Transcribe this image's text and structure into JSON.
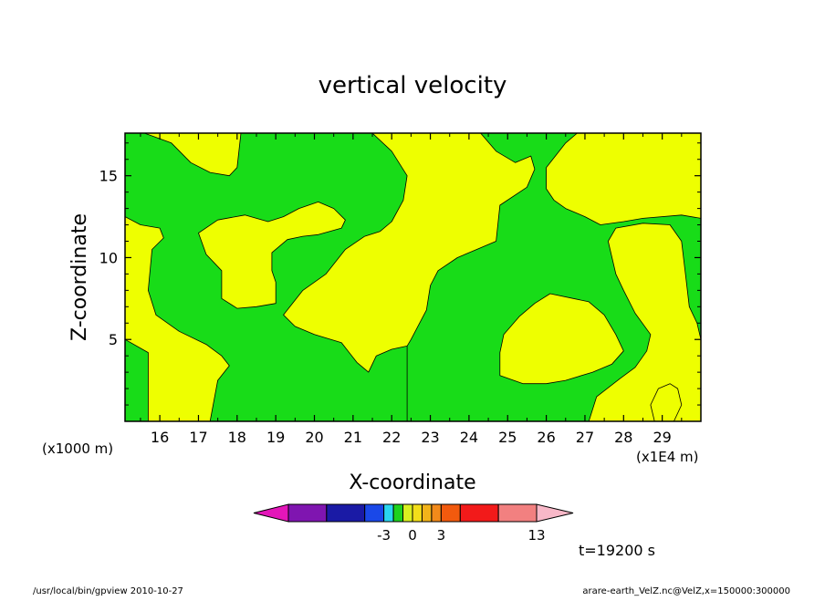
{
  "chart_data": {
    "type": "heatmap",
    "title": "vertical velocity",
    "xlabel": "X-coordinate",
    "ylabel": "Z-coordinate",
    "x_unit": "(x1E4 m)",
    "y_unit": "(x1000 m)",
    "xlim": [
      15.1,
      30.0
    ],
    "ylim": [
      0.0,
      17.6
    ],
    "x_ticks": [
      16,
      17,
      18,
      19,
      20,
      21,
      22,
      23,
      24,
      25,
      26,
      27,
      28,
      29
    ],
    "y_ticks": [
      5,
      10,
      15
    ],
    "time_label": "t=19200 s",
    "colorbar": {
      "levels": [
        -13,
        -9,
        -5,
        -3,
        -2,
        -1,
        0,
        1,
        2,
        3,
        5,
        9,
        13
      ],
      "colors": [
        "#e316b9",
        "#7f15b0",
        "#1a1aa5",
        "#1a48e8",
        "#2ad6f0",
        "#1ed21e",
        "#d8f020",
        "#f2de1a",
        "#f2b31a",
        "#f28a1a",
        "#f25a0e",
        "#f21a1a",
        "#f28080",
        "#f8b8c8"
      ],
      "tick_labels": [
        {
          "value": -3,
          "label": "-3"
        },
        {
          "value": 0,
          "label": "0"
        },
        {
          "value": 3,
          "label": "3"
        },
        {
          "value": 13,
          "label": "13"
        }
      ]
    },
    "fields": {
      "background_color": "#18dc18",
      "positive_color": "#eeff00",
      "positive_regions": [
        [
          [
            15.1,
            12.5
          ],
          [
            15.5,
            12.0
          ],
          [
            16.0,
            11.8
          ],
          [
            16.1,
            11.2
          ],
          [
            15.8,
            10.5
          ],
          [
            15.7,
            8.0
          ],
          [
            15.9,
            6.5
          ],
          [
            16.5,
            5.5
          ],
          [
            17.2,
            4.7
          ],
          [
            17.6,
            4.0
          ],
          [
            17.8,
            3.4
          ],
          [
            17.5,
            2.5
          ],
          [
            17.3,
            0.0
          ],
          [
            15.7,
            0.0
          ],
          [
            15.7,
            4.2
          ],
          [
            15.1,
            5.0
          ]
        ],
        [
          [
            15.6,
            17.6
          ],
          [
            16.3,
            17.0
          ],
          [
            16.8,
            15.8
          ],
          [
            17.3,
            15.2
          ],
          [
            17.8,
            15.0
          ],
          [
            18.0,
            15.5
          ],
          [
            18.1,
            17.6
          ]
        ],
        [
          [
            17.0,
            11.5
          ],
          [
            17.5,
            12.3
          ],
          [
            18.2,
            12.6
          ],
          [
            18.8,
            12.2
          ],
          [
            19.2,
            12.5
          ],
          [
            19.6,
            13.0
          ],
          [
            20.1,
            13.4
          ],
          [
            20.5,
            13.0
          ],
          [
            20.8,
            12.3
          ],
          [
            20.7,
            11.8
          ],
          [
            20.1,
            11.4
          ],
          [
            19.7,
            11.3
          ],
          [
            19.3,
            11.1
          ],
          [
            18.9,
            10.3
          ],
          [
            18.9,
            9.2
          ],
          [
            19.0,
            8.5
          ],
          [
            19.0,
            7.2
          ],
          [
            18.5,
            7.0
          ],
          [
            18.0,
            6.9
          ],
          [
            17.6,
            7.5
          ],
          [
            17.6,
            9.2
          ],
          [
            17.2,
            10.2
          ]
        ],
        [
          [
            19.2,
            6.5
          ],
          [
            19.7,
            8.0
          ],
          [
            20.3,
            9.0
          ],
          [
            20.8,
            10.5
          ],
          [
            21.3,
            11.3
          ],
          [
            21.7,
            11.6
          ],
          [
            22.0,
            12.2
          ],
          [
            22.3,
            13.5
          ],
          [
            22.4,
            15.0
          ],
          [
            22.0,
            16.5
          ],
          [
            21.5,
            17.6
          ],
          [
            24.3,
            17.6
          ],
          [
            24.7,
            16.5
          ],
          [
            25.2,
            15.8
          ],
          [
            25.6,
            16.2
          ],
          [
            25.7,
            15.4
          ],
          [
            25.5,
            14.3
          ],
          [
            24.8,
            13.2
          ],
          [
            24.7,
            11.0
          ],
          [
            24.2,
            10.5
          ],
          [
            23.7,
            10.0
          ],
          [
            23.2,
            9.2
          ],
          [
            23.0,
            8.3
          ],
          [
            22.9,
            6.8
          ],
          [
            22.5,
            5.0
          ],
          [
            22.4,
            4.6
          ],
          [
            22.4,
            0.0
          ],
          [
            27.1,
            0.0
          ],
          [
            27.3,
            1.5
          ],
          [
            27.9,
            2.6
          ],
          [
            28.3,
            3.3
          ],
          [
            28.6,
            4.3
          ],
          [
            28.7,
            5.3
          ],
          [
            28.3,
            6.6
          ],
          [
            28.0,
            8.0
          ],
          [
            27.8,
            9.0
          ],
          [
            27.6,
            11.0
          ],
          [
            27.8,
            11.8
          ],
          [
            28.5,
            12.1
          ],
          [
            29.2,
            12.0
          ],
          [
            29.5,
            11.0
          ],
          [
            29.6,
            9.0
          ],
          [
            29.7,
            7.0
          ],
          [
            29.9,
            6.0
          ],
          [
            30.0,
            5.0
          ],
          [
            30.0,
            12.4
          ],
          [
            29.5,
            12.6
          ],
          [
            28.5,
            12.4
          ],
          [
            28.0,
            12.2
          ],
          [
            27.4,
            12.0
          ],
          [
            27.0,
            12.5
          ],
          [
            26.5,
            13.0
          ],
          [
            26.2,
            13.5
          ],
          [
            26.0,
            14.2
          ],
          [
            26.0,
            15.5
          ],
          [
            26.5,
            17.0
          ],
          [
            26.8,
            17.6
          ],
          [
            30.0,
            17.6
          ],
          [
            30.0,
            0.0
          ],
          [
            22.4,
            0.0
          ],
          [
            22.4,
            4.6
          ],
          [
            22.0,
            4.4
          ],
          [
            21.6,
            4.0
          ],
          [
            21.4,
            3.0
          ],
          [
            21.1,
            3.6
          ],
          [
            20.7,
            4.8
          ],
          [
            20.0,
            5.3
          ],
          [
            19.5,
            5.8
          ]
        ],
        [
          [
            26.1,
            7.8
          ],
          [
            26.7,
            7.5
          ],
          [
            27.1,
            7.3
          ],
          [
            27.5,
            6.5
          ],
          [
            27.8,
            5.3
          ],
          [
            28.0,
            4.3
          ],
          [
            27.7,
            3.5
          ],
          [
            27.2,
            3.0
          ],
          [
            26.5,
            2.5
          ],
          [
            26.0,
            2.3
          ],
          [
            25.4,
            2.3
          ],
          [
            24.8,
            2.8
          ],
          [
            24.8,
            4.2
          ],
          [
            24.9,
            5.3
          ],
          [
            25.3,
            6.4
          ],
          [
            25.7,
            7.2
          ]
        ],
        [
          [
            28.8,
            0.0
          ],
          [
            29.3,
            0.0
          ],
          [
            29.5,
            1.0
          ],
          [
            29.4,
            2.0
          ],
          [
            29.2,
            2.3
          ],
          [
            28.9,
            2.0
          ],
          [
            28.7,
            1.0
          ]
        ]
      ]
    }
  },
  "footer": {
    "left": "/usr/local/bin/gpview   2010-10-27",
    "right": "arare-earth_VelZ.nc@VelZ,x=150000:300000"
  }
}
